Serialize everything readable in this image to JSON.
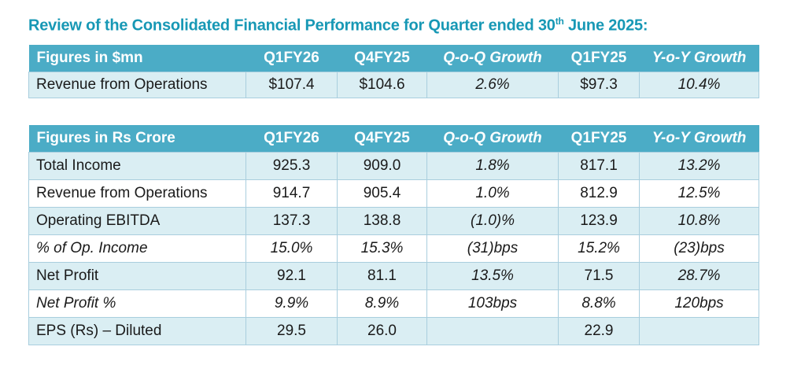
{
  "title": {
    "prefix": "Review of the Consolidated Financial Performance for Quarter ended 30",
    "superscript": "th",
    "suffix": " June 2025:"
  },
  "colors": {
    "header_bg": "#4bacc6",
    "band_bg": "#daeef3",
    "border": "#a9cede",
    "title_text": "#1798b5",
    "header_text": "#ffffff",
    "body_text": "#1a1a1a"
  },
  "tables": [
    {
      "name": "figures-in-usd-mn",
      "columns": [
        "Figures in $mn",
        "Q1FY26",
        "Q4FY25",
        "Q-o-Q Growth",
        "Q1FY25",
        "Y-o-Y Growth"
      ],
      "italic_columns": [
        3,
        5
      ],
      "rows": [
        {
          "italic": false,
          "cells": [
            "Revenue from Operations",
            "$107.4",
            "$104.6",
            "2.6%",
            "$97.3",
            "10.4%"
          ]
        }
      ]
    },
    {
      "name": "figures-in-rs-crore",
      "columns": [
        "Figures in Rs Crore",
        "Q1FY26",
        "Q4FY25",
        "Q-o-Q Growth",
        "Q1FY25",
        "Y-o-Y Growth"
      ],
      "italic_columns": [
        3,
        5
      ],
      "rows": [
        {
          "italic": false,
          "cells": [
            "Total Income",
            "925.3",
            "909.0",
            "1.8%",
            "817.1",
            "13.2%"
          ]
        },
        {
          "italic": false,
          "cells": [
            "Revenue from Operations",
            "914.7",
            "905.4",
            "1.0%",
            "812.9",
            "12.5%"
          ]
        },
        {
          "italic": false,
          "cells": [
            "Operating EBITDA",
            "137.3",
            "138.8",
            "(1.0)%",
            "123.9",
            "10.8%"
          ]
        },
        {
          "italic": true,
          "cells": [
            "% of Op. Income",
            "15.0%",
            "15.3%",
            "(31)bps",
            "15.2%",
            "(23)bps"
          ]
        },
        {
          "italic": false,
          "cells": [
            "Net Profit",
            "92.1",
            "81.1",
            "13.5%",
            "71.5",
            "28.7%"
          ]
        },
        {
          "italic": true,
          "cells": [
            "Net Profit %",
            "9.9%",
            "8.9%",
            "103bps",
            "8.8%",
            "120bps"
          ]
        },
        {
          "italic": false,
          "cells": [
            "EPS (Rs) – Diluted",
            "29.5",
            "26.0",
            "",
            "22.9",
            ""
          ]
        }
      ]
    }
  ]
}
